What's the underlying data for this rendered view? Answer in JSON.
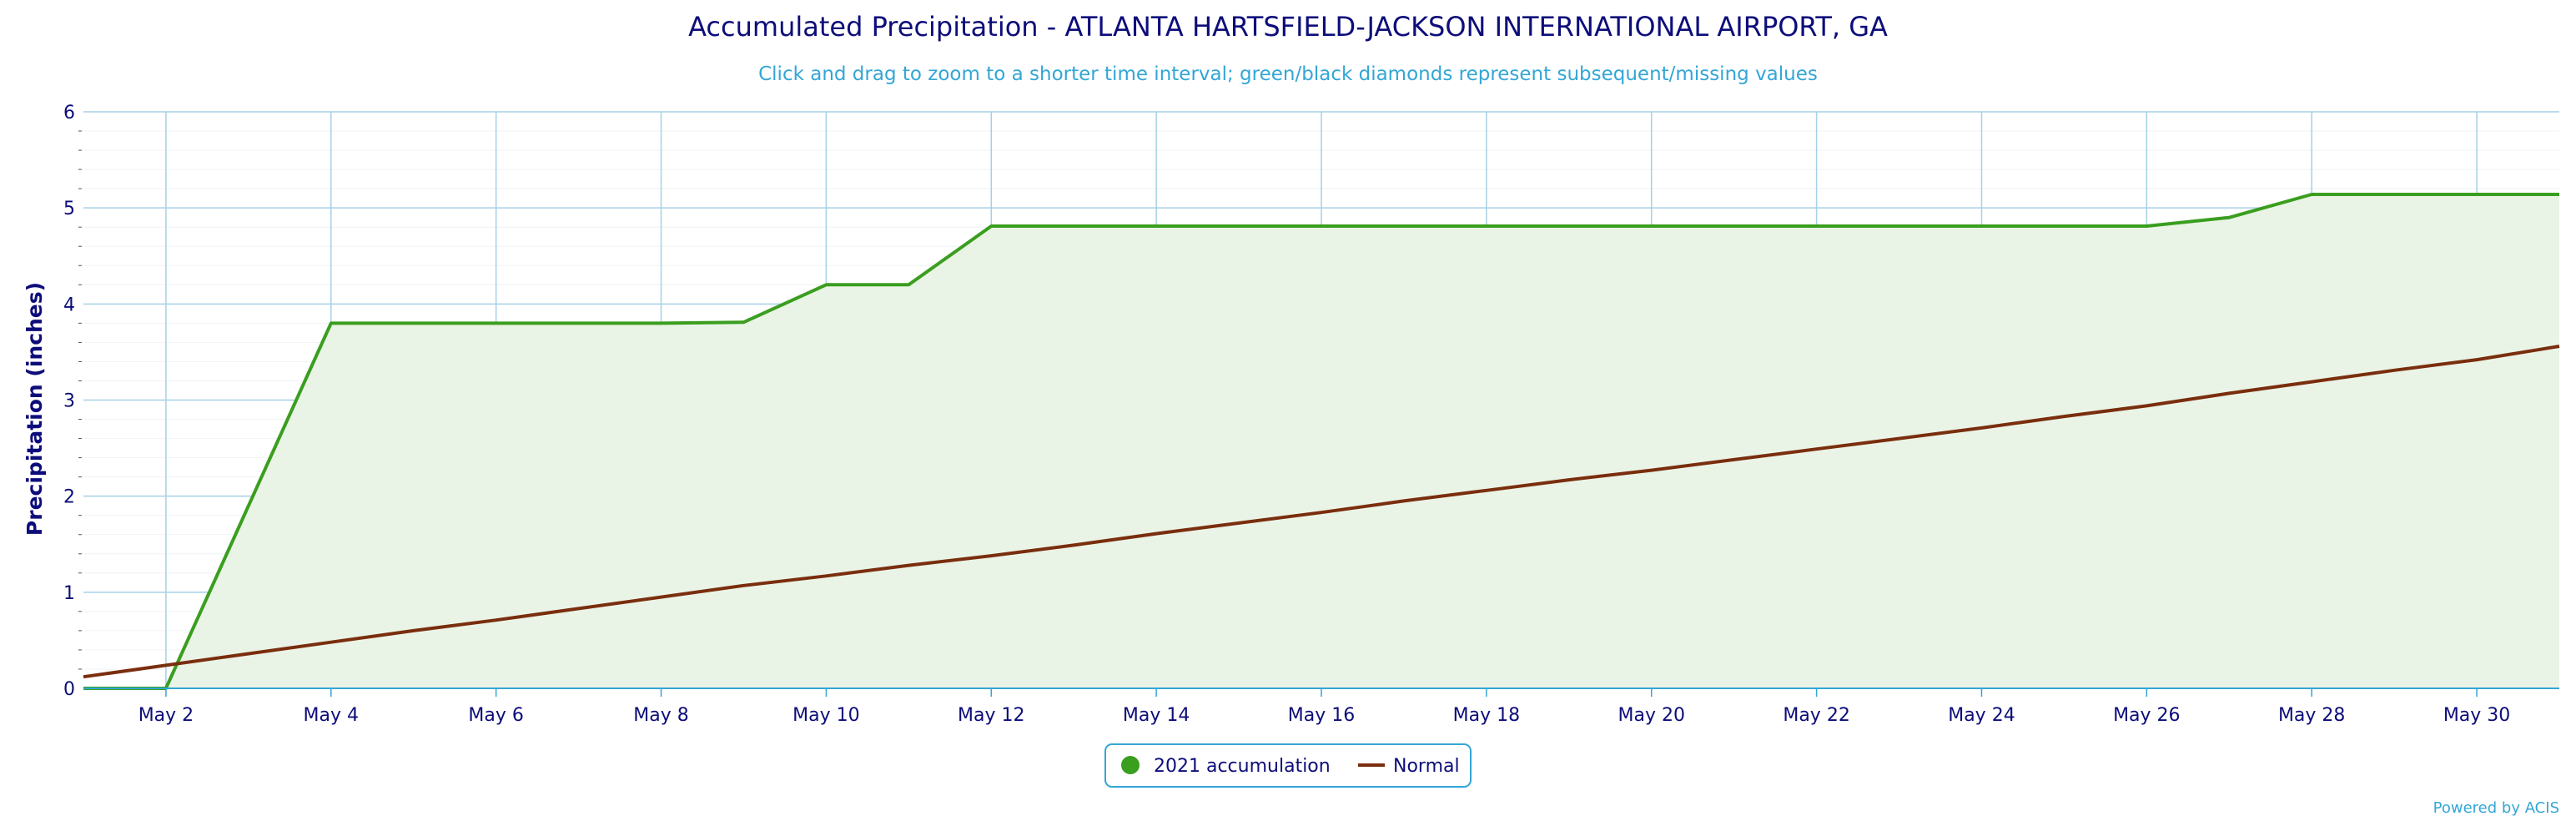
{
  "chart_data": {
    "type": "line",
    "title": "Accumulated Precipitation - ATLANTA HARTSFIELD-JACKSON INTERNATIONAL AIRPORT, GA",
    "subtitle": "Click and drag to zoom to a shorter time interval; green/black diamonds represent subsequent/missing values",
    "ylabel": "Precipitation (inches)",
    "xlabel": "",
    "ylim": [
      0,
      6
    ],
    "yticks": [
      0,
      1,
      2,
      3,
      4,
      5,
      6
    ],
    "xlim": [
      1,
      31
    ],
    "xticks": [
      {
        "day": 2,
        "label": "May 2"
      },
      {
        "day": 4,
        "label": "May 4"
      },
      {
        "day": 6,
        "label": "May 6"
      },
      {
        "day": 8,
        "label": "May 8"
      },
      {
        "day": 10,
        "label": "May 10"
      },
      {
        "day": 12,
        "label": "May 12"
      },
      {
        "day": 14,
        "label": "May 14"
      },
      {
        "day": 16,
        "label": "May 16"
      },
      {
        "day": 18,
        "label": "May 18"
      },
      {
        "day": 20,
        "label": "May 20"
      },
      {
        "day": 22,
        "label": "May 22"
      },
      {
        "day": 24,
        "label": "May 24"
      },
      {
        "day": 26,
        "label": "May 26"
      },
      {
        "day": 28,
        "label": "May 28"
      },
      {
        "day": 30,
        "label": "May 30"
      }
    ],
    "x": [
      1,
      2,
      3,
      4,
      5,
      6,
      7,
      8,
      9,
      10,
      11,
      12,
      13,
      14,
      15,
      16,
      17,
      18,
      19,
      20,
      21,
      22,
      23,
      24,
      25,
      26,
      27,
      28,
      29,
      30,
      31
    ],
    "series": [
      {
        "name": "2021 accumulation",
        "color": "#3a9e1f",
        "fill": "#eaf4e6",
        "values": [
          0,
          0,
          1.9,
          3.8,
          3.8,
          3.8,
          3.8,
          3.8,
          3.81,
          4.2,
          4.2,
          4.81,
          4.81,
          4.81,
          4.81,
          4.81,
          4.81,
          4.81,
          4.81,
          4.81,
          4.81,
          4.81,
          4.81,
          4.81,
          4.81,
          4.81,
          4.9,
          5.14,
          5.14,
          5.14,
          5.14
        ]
      },
      {
        "name": "Normal",
        "color": "#7a2e0e",
        "values": [
          0.12,
          0.24,
          0.36,
          0.48,
          0.6,
          0.71,
          0.83,
          0.95,
          1.07,
          1.17,
          1.28,
          1.38,
          1.49,
          1.61,
          1.72,
          1.83,
          1.95,
          2.06,
          2.17,
          2.27,
          2.38,
          2.49,
          2.6,
          2.71,
          2.83,
          2.94,
          3.07,
          3.19,
          3.31,
          3.42,
          3.56
        ]
      }
    ],
    "grid": true,
    "legend_position": "bottom-center"
  },
  "credit": "Powered by ACIS",
  "colors": {
    "title": "#0d0d7a",
    "subtitle": "#33a6d6",
    "grid": "#a6d0e6",
    "axis": "#33a6d6"
  }
}
